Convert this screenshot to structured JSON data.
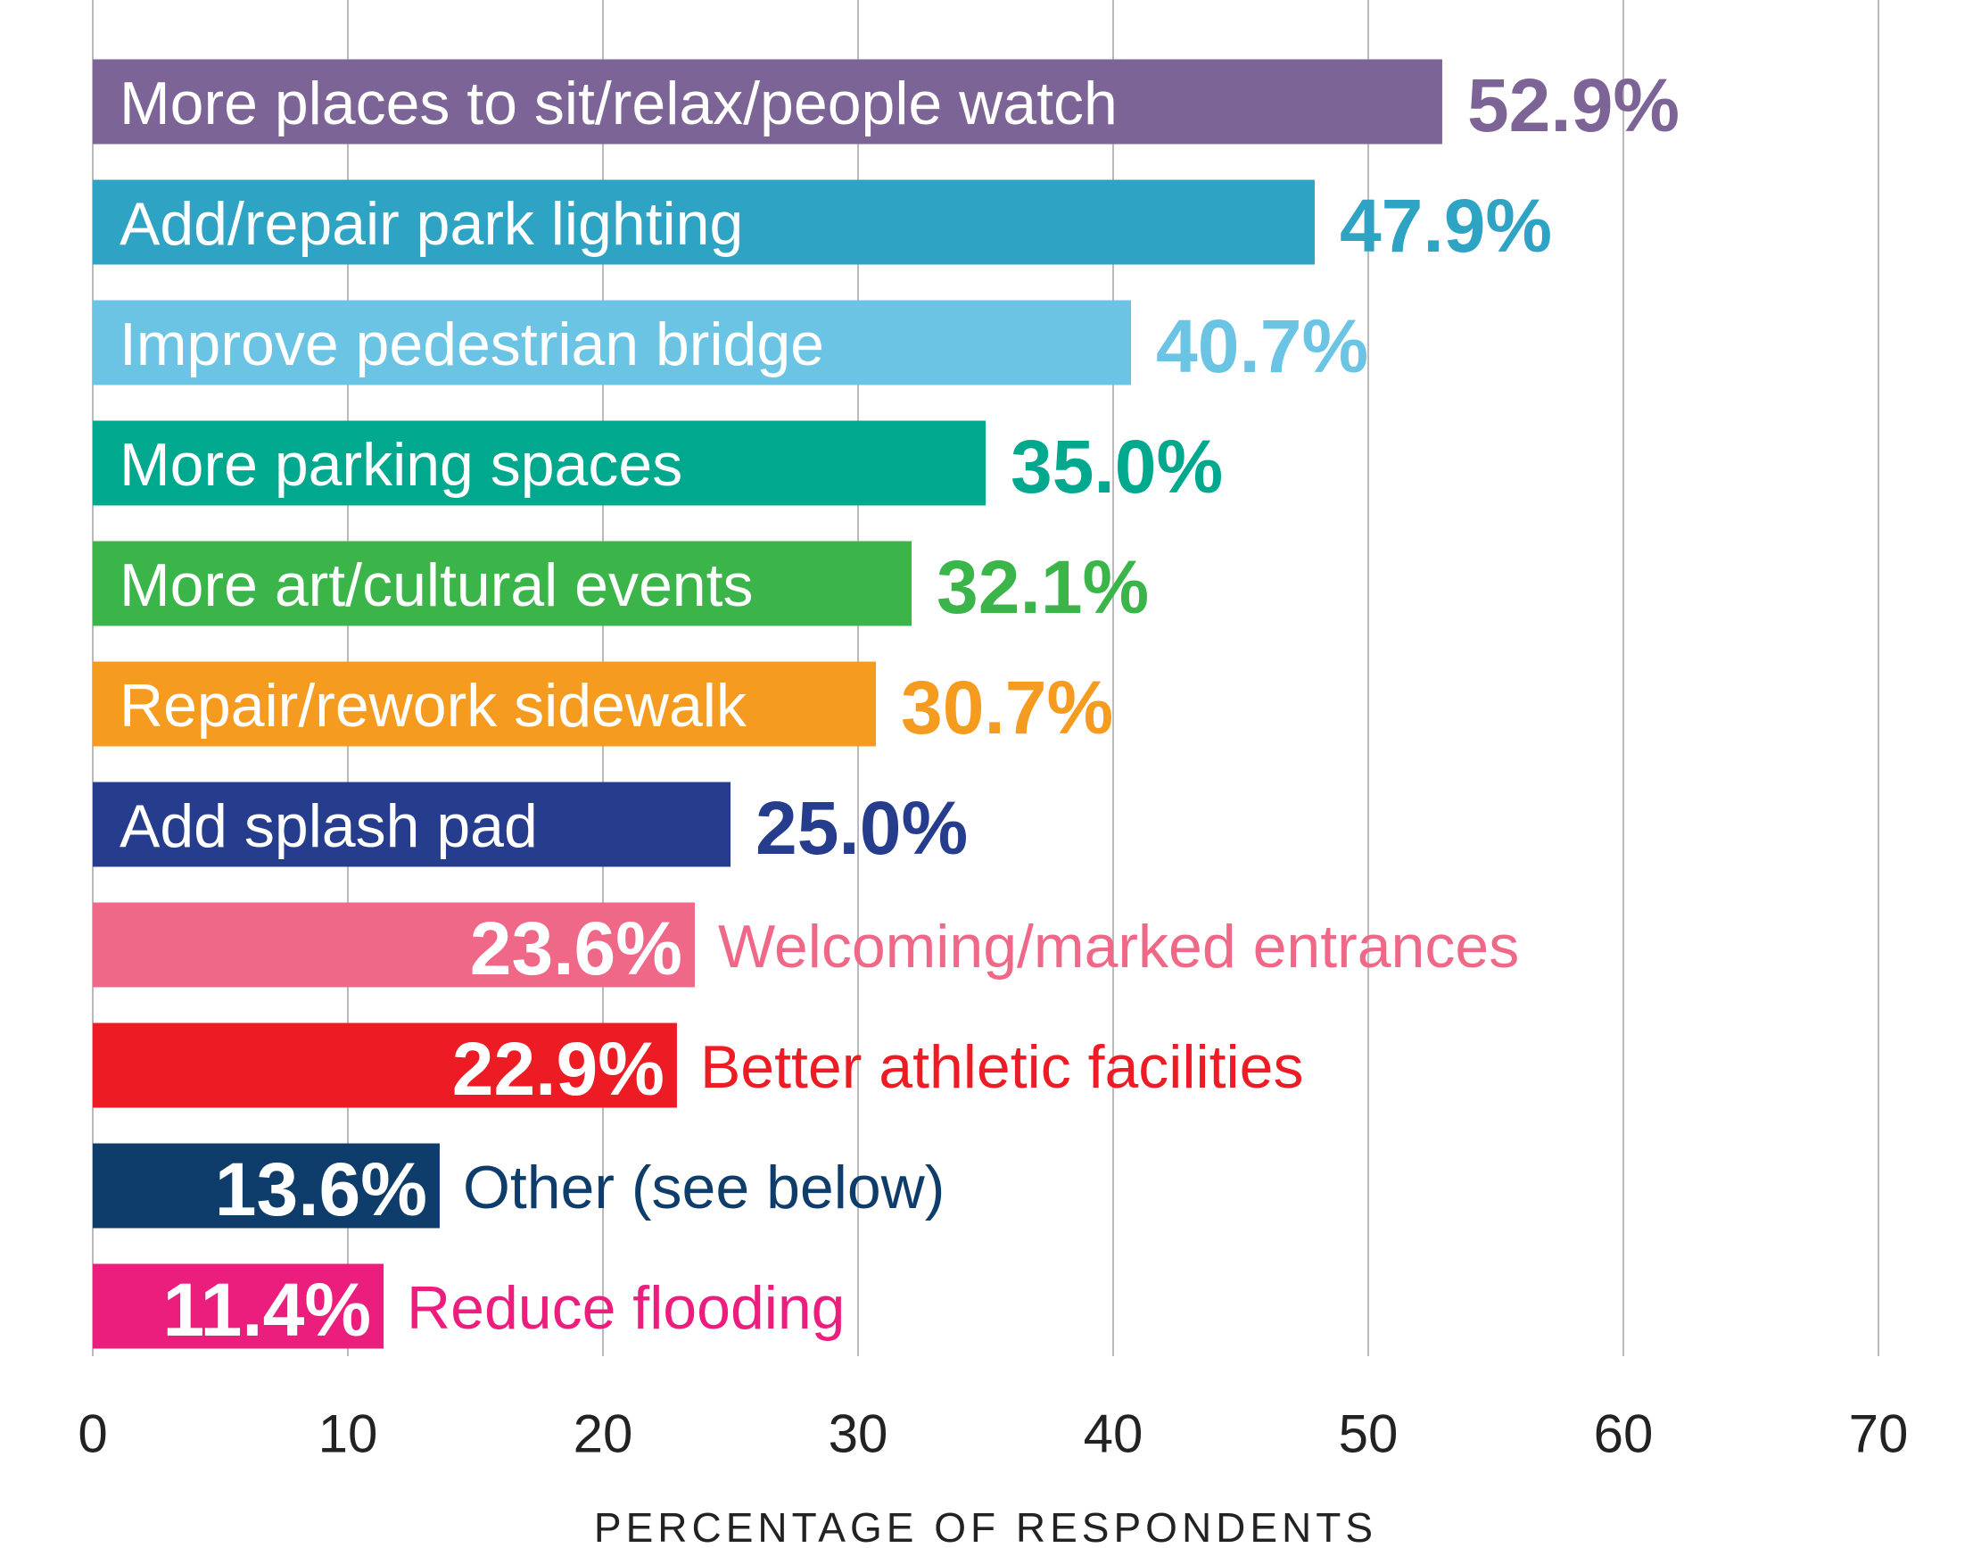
{
  "chart_data": {
    "type": "bar",
    "orientation": "horizontal",
    "xlabel": "PERCENTAGE OF RESPONDENTS",
    "categories": [
      "More places to sit/relax/people watch",
      "Add/repair park lighting",
      "Improve pedestrian bridge",
      "More parking spaces",
      "More art/cultural events",
      "Repair/rework sidewalk",
      "Add splash pad",
      "Welcoming/marked entrances",
      "Better athletic facilities",
      "Other (see below)",
      "Reduce flooding"
    ],
    "values": [
      52.9,
      47.9,
      40.7,
      35.0,
      32.1,
      30.7,
      25.0,
      23.6,
      22.9,
      13.6,
      11.4
    ],
    "value_labels": [
      "52.9%",
      "47.9%",
      "40.7%",
      "35.0%",
      "32.1%",
      "30.7%",
      "25.0%",
      "23.6%",
      "22.9%",
      "13.6%",
      "11.4%"
    ],
    "colors": [
      "#7d6496",
      "#2ea3c3",
      "#6bc4e3",
      "#00a88e",
      "#3bb54a",
      "#f49b20",
      "#253d8c",
      "#ef6888",
      "#ed1c24",
      "#0f3d6b",
      "#ec1e7d"
    ],
    "xlim": [
      0,
      70
    ],
    "xticks": [
      0,
      10,
      20,
      30,
      40,
      50,
      60,
      70
    ],
    "grid": true
  }
}
